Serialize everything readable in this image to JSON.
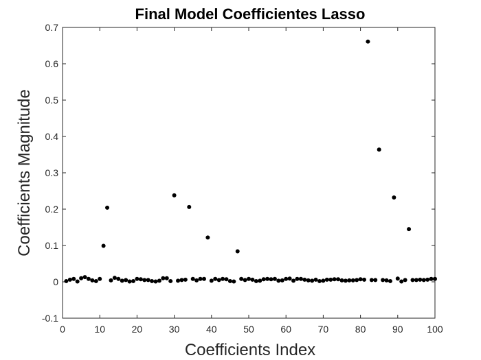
{
  "chart_data": {
    "type": "scatter",
    "title": "Final Model Coefficientes Lasso",
    "xlabel": "Coefficients Index",
    "ylabel": "Coefficients Magnitude",
    "xlim": [
      0,
      100
    ],
    "ylim": [
      -0.1,
      0.7
    ],
    "xticks": [
      0,
      10,
      20,
      30,
      40,
      50,
      60,
      70,
      80,
      90,
      100
    ],
    "yticks": [
      -0.1,
      0,
      0.1,
      0.2,
      0.3,
      0.4,
      0.5,
      0.6,
      0.7
    ],
    "xtick_labels": [
      "0",
      "10",
      "20",
      "30",
      "40",
      "50",
      "60",
      "70",
      "80",
      "90",
      "100"
    ],
    "ytick_labels": [
      "-0.1",
      "0",
      "0.1",
      "0.2",
      "0.3",
      "0.4",
      "0.5",
      "0.6",
      "0.7"
    ],
    "grid": false,
    "marker_color": "#000000",
    "x": [
      1,
      2,
      3,
      4,
      5,
      6,
      7,
      8,
      9,
      10,
      11,
      12,
      13,
      14,
      15,
      16,
      17,
      18,
      19,
      20,
      21,
      22,
      23,
      24,
      25,
      26,
      27,
      28,
      29,
      30,
      31,
      32,
      33,
      34,
      35,
      36,
      37,
      38,
      39,
      40,
      41,
      42,
      43,
      44,
      45,
      46,
      47,
      48,
      49,
      50,
      51,
      52,
      53,
      54,
      55,
      56,
      57,
      58,
      59,
      60,
      61,
      62,
      63,
      64,
      65,
      66,
      67,
      68,
      69,
      70,
      71,
      72,
      73,
      74,
      75,
      76,
      77,
      78,
      79,
      80,
      81,
      82,
      83,
      84,
      85,
      86,
      87,
      88,
      89,
      90,
      91,
      92,
      93,
      94,
      95,
      96,
      97,
      98,
      99,
      100
    ],
    "y": [
      0.002,
      0.006,
      0.008,
      0.001,
      0.01,
      0.013,
      0.008,
      0.004,
      0.002,
      0.008,
      0.099,
      0.204,
      0.004,
      0.011,
      0.008,
      0.003,
      0.005,
      0.001,
      0.002,
      0.008,
      0.007,
      0.005,
      0.005,
      0.002,
      0.001,
      0.003,
      0.01,
      0.01,
      0.002,
      0.238,
      0.003,
      0.005,
      0.006,
      0.206,
      0.008,
      0.004,
      0.008,
      0.008,
      0.122,
      0.003,
      0.008,
      0.005,
      0.008,
      0.007,
      0.002,
      0.001,
      0.084,
      0.008,
      0.005,
      0.008,
      0.006,
      0.002,
      0.003,
      0.007,
      0.008,
      0.007,
      0.008,
      0.003,
      0.004,
      0.008,
      0.009,
      0.003,
      0.008,
      0.008,
      0.006,
      0.004,
      0.003,
      0.006,
      0.002,
      0.003,
      0.006,
      0.006,
      0.007,
      0.007,
      0.004,
      0.003,
      0.004,
      0.004,
      0.005,
      0.007,
      0.006,
      0.661,
      0.005,
      0.005,
      0.364,
      0.005,
      0.004,
      0.002,
      0.232,
      0.009,
      0.001,
      0.005,
      0.145,
      0.005,
      0.005,
      0.006,
      0.005,
      0.006,
      0.008,
      0.008
    ]
  }
}
